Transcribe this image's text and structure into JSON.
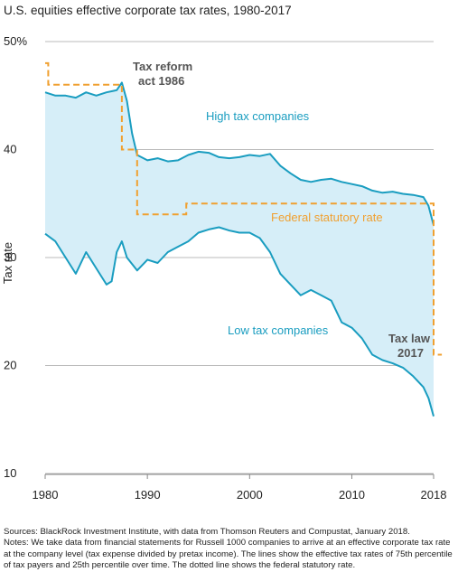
{
  "chart_data": {
    "type": "line",
    "title": "U.S. equities effective corporate tax rates, 1980-2017",
    "ylabel": "Tax rate",
    "xlim": [
      1980,
      2018
    ],
    "ylim": [
      10,
      50
    ],
    "x_ticks": [
      "1980",
      "1990",
      "2000",
      "2010",
      "2018"
    ],
    "y_ticks": [
      "50%",
      "40",
      "30",
      "20",
      "10"
    ],
    "grid": "horizontal",
    "colors": {
      "high": "#1a9dc0",
      "low": "#1a9dc0",
      "band": "#d6eef8",
      "statutory": "#f0a030",
      "grid": "#bbbbbb"
    },
    "series": [
      {
        "name": "High tax companies",
        "x": [
          1980.0,
          1981.0,
          1982.0,
          1983.0,
          1984.0,
          1985.0,
          1986.0,
          1987.0,
          1987.5,
          1988.0,
          1988.5,
          1989.0,
          1990.0,
          1991.0,
          1992.0,
          1993.0,
          1994.0,
          1995.0,
          1996.0,
          1997.0,
          1998.0,
          1999.0,
          2000.0,
          2001.0,
          2002.0,
          2003.0,
          2004.0,
          2005.0,
          2006.0,
          2007.0,
          2008.0,
          2009.0,
          2010.0,
          2011.0,
          2012.0,
          2013.0,
          2014.0,
          2015.0,
          2016.0,
          2017.0,
          2017.5,
          2018.0
        ],
        "values": [
          45.3,
          45.0,
          45.0,
          44.8,
          45.3,
          45.0,
          45.3,
          45.5,
          46.2,
          44.5,
          41.5,
          39.5,
          39.0,
          39.2,
          38.9,
          39.0,
          39.5,
          39.8,
          39.7,
          39.3,
          39.2,
          39.3,
          39.5,
          39.4,
          39.6,
          38.5,
          37.8,
          37.2,
          37.0,
          37.2,
          37.3,
          37.0,
          36.8,
          36.6,
          36.2,
          36.0,
          36.1,
          35.9,
          35.8,
          35.6,
          34.8,
          33.0
        ]
      },
      {
        "name": "Low tax companies",
        "x": [
          1980.0,
          1981.0,
          1982.0,
          1983.0,
          1984.0,
          1985.0,
          1986.0,
          1986.5,
          1987.0,
          1987.5,
          1988.0,
          1989.0,
          1990.0,
          1991.0,
          1992.0,
          1993.0,
          1994.0,
          1995.0,
          1996.0,
          1997.0,
          1998.0,
          1999.0,
          2000.0,
          2001.0,
          2002.0,
          2003.0,
          2004.0,
          2005.0,
          2006.0,
          2007.0,
          2008.0,
          2009.0,
          2010.0,
          2011.0,
          2012.0,
          2013.0,
          2014.0,
          2015.0,
          2016.0,
          2017.0,
          2017.5,
          2018.0
        ],
        "values": [
          32.2,
          31.5,
          30.0,
          28.5,
          30.5,
          29.0,
          27.5,
          27.8,
          30.5,
          31.5,
          30.0,
          28.8,
          29.8,
          29.5,
          30.5,
          31.0,
          31.5,
          32.3,
          32.6,
          32.8,
          32.5,
          32.3,
          32.3,
          31.8,
          30.5,
          28.5,
          27.5,
          26.5,
          27.0,
          26.5,
          26.0,
          24.0,
          23.5,
          22.5,
          21.0,
          20.5,
          20.2,
          19.8,
          19.0,
          18.0,
          17.0,
          15.3
        ]
      },
      {
        "name": "Federal statutory rate",
        "step": true,
        "x": [
          1980.0,
          1980.3,
          1980.3,
          1987.5,
          1987.5,
          1989.0,
          1989.0,
          1993.8,
          1993.8,
          2018.0,
          2018.0,
          2018.8
        ],
        "values": [
          48.0,
          48.0,
          46.0,
          46.0,
          40.0,
          40.0,
          34.0,
          34.0,
          35.0,
          35.0,
          21.0,
          21.0
        ]
      }
    ],
    "annotations": {
      "tax_reform": [
        "Tax reform",
        "act 1986"
      ],
      "high": "High tax companies",
      "statutory": "Federal statutory rate",
      "low": "Low tax companies",
      "tax_law": [
        "Tax law",
        "2017"
      ]
    }
  },
  "notes": {
    "sources": "Sources: BlackRock Investment Institute, with data from Thomson Reuters and Compustat, January 2018.",
    "notes_lines": [
      "Notes: We take data from financial statements for Russell 1000 companies to arrive at an effective corporate tax rate",
      "at the company level (tax expense divided by pretax income). The lines show the effective tax rates of 75th percentile",
      "of tax payers and 25th percentile over time. The dotted line shows the federal statutory rate."
    ]
  }
}
